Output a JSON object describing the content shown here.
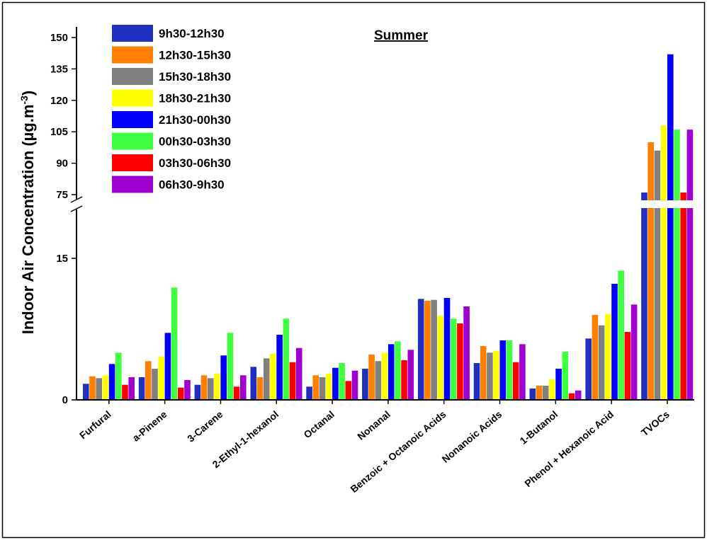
{
  "chart_data": {
    "type": "bar",
    "title": "Summer",
    "xlabel": "",
    "ylabel": "Indoor Air Concentration (µg.m",
    "ylabel_superscript": "-3",
    "y_axis_break": {
      "lower_range": [
        0,
        15
      ],
      "upper_range": [
        75,
        150
      ]
    },
    "yticks_lower": [
      "0",
      "15"
    ],
    "yticks_upper": [
      "75",
      "90",
      "105",
      "120",
      "135",
      "150"
    ],
    "legend_position": "top-left",
    "grid": false,
    "categories": [
      "Furfural",
      "a-Pinene",
      "3-Carene",
      "2-Ethyl-1-hexanol",
      "Octanal",
      "Nonanal",
      "Benzoic + Octanoic Acids",
      "Nonanoic Acids",
      "1-Butanol",
      "Phenol + Hexanoic Acid",
      "TVOCs"
    ],
    "series": [
      {
        "name": "9h30-12h30",
        "color": "#1f2fbf",
        "values": [
          1.7,
          2.4,
          1.6,
          3.5,
          1.4,
          3.3,
          10.7,
          3.9,
          1.2,
          6.5,
          76
        ]
      },
      {
        "name": "12h30-15h30",
        "color": "#ff8000",
        "values": [
          2.5,
          4.1,
          2.6,
          2.4,
          2.6,
          4.8,
          10.5,
          5.7,
          1.5,
          9.0,
          100
        ]
      },
      {
        "name": "15h30-18h30",
        "color": "#808080",
        "values": [
          2.3,
          3.3,
          2.3,
          4.4,
          2.4,
          4.1,
          10.6,
          5.0,
          1.5,
          7.9,
          96
        ]
      },
      {
        "name": "18h30-21h30",
        "color": "#ffff00",
        "values": [
          2.6,
          4.6,
          2.8,
          4.9,
          2.8,
          5.0,
          8.9,
          5.2,
          2.2,
          9.1,
          108
        ]
      },
      {
        "name": "21h30-00h30",
        "color": "#0000ff",
        "values": [
          3.8,
          7.1,
          4.7,
          6.9,
          3.4,
          5.9,
          10.8,
          6.3,
          3.3,
          12.3,
          142
        ]
      },
      {
        "name": "00h30-03h30",
        "color": "#40ff40",
        "values": [
          5.0,
          11.9,
          7.1,
          8.6,
          3.9,
          6.2,
          8.6,
          6.3,
          5.1,
          13.7,
          106
        ]
      },
      {
        "name": "03h30-06h30",
        "color": "#ff0000",
        "values": [
          1.6,
          1.3,
          1.4,
          4.0,
          2.0,
          4.2,
          8.1,
          4.0,
          0.7,
          7.2,
          76
        ]
      },
      {
        "name": "06h30-9h30",
        "color": "#a000d0",
        "values": [
          2.4,
          2.1,
          2.6,
          5.5,
          3.1,
          5.3,
          9.9,
          5.9,
          1.0,
          10.1,
          106
        ]
      }
    ]
  }
}
